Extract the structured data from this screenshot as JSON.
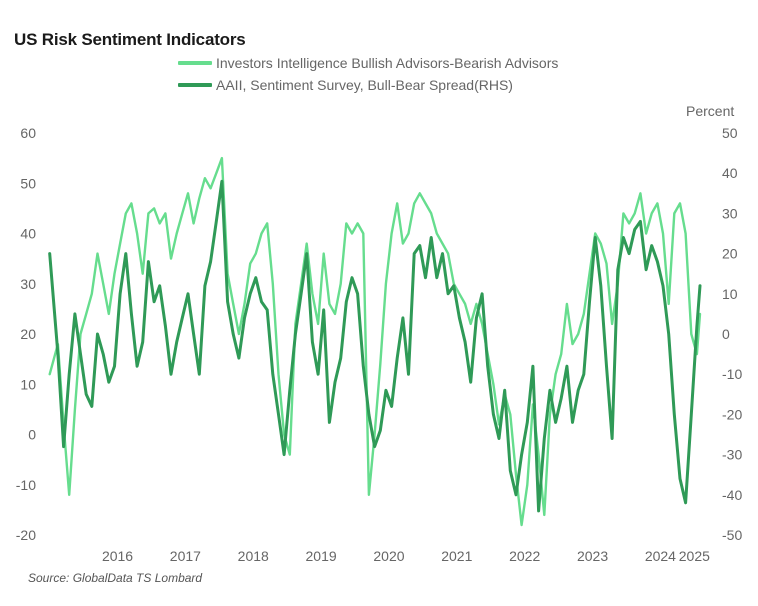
{
  "page": {
    "title": "US Risk Sentiment Indicators",
    "source": "Source: GlobalData TS Lombard",
    "rhs_unit": "Percent"
  },
  "colors": {
    "ii": "#66dd8e",
    "aaii": "#2f9a57"
  },
  "chart_data": {
    "type": "line",
    "title": "US Risk Sentiment Indicators",
    "x_range": [
      "2015-06",
      "2025-02"
    ],
    "x_tick_labels": [
      "2016",
      "2017",
      "2018",
      "2019",
      "2020",
      "2021",
      "2022",
      "2023",
      "2024",
      "2025"
    ],
    "left_axis": {
      "ylim": [
        -20,
        60
      ],
      "ticks": [
        "60",
        "50",
        "40",
        "30",
        "20",
        "10",
        "0",
        "-10",
        "-20"
      ]
    },
    "right_axis": {
      "label": "Percent",
      "ylim": [
        -50,
        50
      ],
      "ticks": [
        "50",
        "40",
        "30",
        "20",
        "10",
        "0",
        "-10",
        "-20",
        "-30",
        "-40",
        "-50"
      ]
    },
    "grid": false,
    "legend_position": "top",
    "series": [
      {
        "name": "Investors Intelligence Bullish Advisors-Bearish Advisors",
        "axis": "left",
        "color": "#66dd8e",
        "points": [
          [
            "2015-07-01",
            12
          ],
          [
            "2015-08-15",
            18
          ],
          [
            "2015-09-15",
            2
          ],
          [
            "2015-10-15",
            -12
          ],
          [
            "2015-11-15",
            5
          ],
          [
            "2015-12-15",
            20
          ],
          [
            "2016-01-15",
            24
          ],
          [
            "2016-02-15",
            28
          ],
          [
            "2016-03-15",
            36
          ],
          [
            "2016-04-15",
            30
          ],
          [
            "2016-05-15",
            24
          ],
          [
            "2016-06-15",
            32
          ],
          [
            "2016-07-15",
            38
          ],
          [
            "2016-08-15",
            44
          ],
          [
            "2016-09-15",
            46
          ],
          [
            "2016-10-15",
            40
          ],
          [
            "2016-11-15",
            32
          ],
          [
            "2016-12-15",
            44
          ],
          [
            "2017-01-15",
            45
          ],
          [
            "2017-02-15",
            42
          ],
          [
            "2017-03-15",
            44
          ],
          [
            "2017-04-15",
            35
          ],
          [
            "2017-05-15",
            40
          ],
          [
            "2017-06-15",
            44
          ],
          [
            "2017-07-15",
            48
          ],
          [
            "2017-08-15",
            42
          ],
          [
            "2017-09-15",
            47
          ],
          [
            "2017-10-15",
            51
          ],
          [
            "2017-11-15",
            49
          ],
          [
            "2017-12-15",
            52
          ],
          [
            "2018-01-15",
            55
          ],
          [
            "2018-02-15",
            32
          ],
          [
            "2018-03-15",
            26
          ],
          [
            "2018-04-15",
            20
          ],
          [
            "2018-05-15",
            26
          ],
          [
            "2018-06-15",
            34
          ],
          [
            "2018-07-15",
            36
          ],
          [
            "2018-08-15",
            40
          ],
          [
            "2018-09-15",
            42
          ],
          [
            "2018-10-15",
            30
          ],
          [
            "2018-11-15",
            12
          ],
          [
            "2018-12-15",
            0
          ],
          [
            "2019-01-15",
            -4
          ],
          [
            "2019-02-15",
            22
          ],
          [
            "2019-03-15",
            30
          ],
          [
            "2019-04-15",
            38
          ],
          [
            "2019-05-15",
            28
          ],
          [
            "2019-06-15",
            22
          ],
          [
            "2019-07-15",
            36
          ],
          [
            "2019-08-15",
            26
          ],
          [
            "2019-09-15",
            24
          ],
          [
            "2019-10-15",
            30
          ],
          [
            "2019-11-15",
            42
          ],
          [
            "2019-12-15",
            40
          ],
          [
            "2020-01-15",
            42
          ],
          [
            "2020-02-15",
            40
          ],
          [
            "2020-03-15",
            -12
          ],
          [
            "2020-04-15",
            0
          ],
          [
            "2020-05-15",
            14
          ],
          [
            "2020-06-15",
            30
          ],
          [
            "2020-07-15",
            40
          ],
          [
            "2020-08-15",
            46
          ],
          [
            "2020-09-15",
            38
          ],
          [
            "2020-10-15",
            40
          ],
          [
            "2020-11-15",
            46
          ],
          [
            "2020-12-15",
            48
          ],
          [
            "2021-01-15",
            46
          ],
          [
            "2021-02-15",
            44
          ],
          [
            "2021-03-15",
            40
          ],
          [
            "2021-04-15",
            38
          ],
          [
            "2021-05-15",
            36
          ],
          [
            "2021-06-15",
            30
          ],
          [
            "2021-07-15",
            28
          ],
          [
            "2021-08-15",
            26
          ],
          [
            "2021-09-15",
            22
          ],
          [
            "2021-10-15",
            26
          ],
          [
            "2021-11-15",
            22
          ],
          [
            "2021-12-15",
            16
          ],
          [
            "2022-01-15",
            10
          ],
          [
            "2022-02-15",
            2
          ],
          [
            "2022-03-15",
            8
          ],
          [
            "2022-04-15",
            4
          ],
          [
            "2022-05-15",
            -8
          ],
          [
            "2022-06-15",
            -18
          ],
          [
            "2022-07-15",
            -10
          ],
          [
            "2022-08-15",
            6
          ],
          [
            "2022-09-15",
            -4
          ],
          [
            "2022-10-15",
            -16
          ],
          [
            "2022-11-15",
            4
          ],
          [
            "2022-12-15",
            12
          ],
          [
            "2023-01-15",
            16
          ],
          [
            "2023-02-15",
            26
          ],
          [
            "2023-03-15",
            18
          ],
          [
            "2023-04-15",
            20
          ],
          [
            "2023-05-15",
            24
          ],
          [
            "2023-06-15",
            32
          ],
          [
            "2023-07-15",
            40
          ],
          [
            "2023-08-15",
            38
          ],
          [
            "2023-09-15",
            34
          ],
          [
            "2023-10-15",
            22
          ],
          [
            "2023-11-15",
            30
          ],
          [
            "2023-12-15",
            44
          ],
          [
            "2024-01-15",
            42
          ],
          [
            "2024-02-15",
            44
          ],
          [
            "2024-03-15",
            48
          ],
          [
            "2024-04-15",
            40
          ],
          [
            "2024-05-15",
            44
          ],
          [
            "2024-06-15",
            46
          ],
          [
            "2024-07-15",
            40
          ],
          [
            "2024-08-15",
            26
          ],
          [
            "2024-09-15",
            44
          ],
          [
            "2024-10-15",
            46
          ],
          [
            "2024-11-15",
            40
          ],
          [
            "2024-12-15",
            20
          ],
          [
            "2025-01-15",
            16
          ],
          [
            "2025-02-01",
            24
          ]
        ]
      },
      {
        "name": "AAII, Sentiment Survey, Bull-Bear Spread(RHS)",
        "axis": "right",
        "color": "#2f9a57",
        "points": [
          [
            "2015-07-01",
            20
          ],
          [
            "2015-08-15",
            -5
          ],
          [
            "2015-09-15",
            -28
          ],
          [
            "2015-10-15",
            -10
          ],
          [
            "2015-11-15",
            5
          ],
          [
            "2015-12-15",
            -5
          ],
          [
            "2016-01-15",
            -15
          ],
          [
            "2016-02-15",
            -18
          ],
          [
            "2016-03-15",
            0
          ],
          [
            "2016-04-15",
            -5
          ],
          [
            "2016-05-15",
            -12
          ],
          [
            "2016-06-15",
            -8
          ],
          [
            "2016-07-15",
            10
          ],
          [
            "2016-08-15",
            20
          ],
          [
            "2016-09-15",
            5
          ],
          [
            "2016-10-15",
            -8
          ],
          [
            "2016-11-15",
            -2
          ],
          [
            "2016-12-15",
            18
          ],
          [
            "2017-01-15",
            8
          ],
          [
            "2017-02-15",
            12
          ],
          [
            "2017-03-15",
            2
          ],
          [
            "2017-04-15",
            -10
          ],
          [
            "2017-05-15",
            -2
          ],
          [
            "2017-06-15",
            4
          ],
          [
            "2017-07-15",
            10
          ],
          [
            "2017-08-15",
            0
          ],
          [
            "2017-09-15",
            -10
          ],
          [
            "2017-10-15",
            12
          ],
          [
            "2017-11-15",
            18
          ],
          [
            "2017-12-15",
            28
          ],
          [
            "2018-01-15",
            38
          ],
          [
            "2018-02-15",
            8
          ],
          [
            "2018-03-15",
            0
          ],
          [
            "2018-04-15",
            -6
          ],
          [
            "2018-05-15",
            4
          ],
          [
            "2018-06-15",
            10
          ],
          [
            "2018-07-15",
            14
          ],
          [
            "2018-08-15",
            8
          ],
          [
            "2018-09-15",
            6
          ],
          [
            "2018-10-15",
            -10
          ],
          [
            "2018-11-15",
            -20
          ],
          [
            "2018-12-15",
            -30
          ],
          [
            "2019-01-15",
            -14
          ],
          [
            "2019-02-15",
            0
          ],
          [
            "2019-03-15",
            10
          ],
          [
            "2019-04-15",
            20
          ],
          [
            "2019-05-15",
            -2
          ],
          [
            "2019-06-15",
            -10
          ],
          [
            "2019-07-15",
            6
          ],
          [
            "2019-08-15",
            -22
          ],
          [
            "2019-09-15",
            -12
          ],
          [
            "2019-10-15",
            -6
          ],
          [
            "2019-11-15",
            8
          ],
          [
            "2019-12-15",
            14
          ],
          [
            "2020-01-15",
            10
          ],
          [
            "2020-02-15",
            -8
          ],
          [
            "2020-03-15",
            -20
          ],
          [
            "2020-04-15",
            -28
          ],
          [
            "2020-05-15",
            -24
          ],
          [
            "2020-06-15",
            -14
          ],
          [
            "2020-07-15",
            -18
          ],
          [
            "2020-08-15",
            -6
          ],
          [
            "2020-09-15",
            4
          ],
          [
            "2020-10-15",
            -10
          ],
          [
            "2020-11-15",
            20
          ],
          [
            "2020-12-15",
            22
          ],
          [
            "2021-01-15",
            14
          ],
          [
            "2021-02-15",
            24
          ],
          [
            "2021-03-15",
            14
          ],
          [
            "2021-04-15",
            20
          ],
          [
            "2021-05-15",
            10
          ],
          [
            "2021-06-15",
            12
          ],
          [
            "2021-07-15",
            4
          ],
          [
            "2021-08-15",
            -2
          ],
          [
            "2021-09-15",
            -12
          ],
          [
            "2021-10-15",
            4
          ],
          [
            "2021-11-15",
            10
          ],
          [
            "2021-12-15",
            -8
          ],
          [
            "2022-01-15",
            -20
          ],
          [
            "2022-02-15",
            -26
          ],
          [
            "2022-03-15",
            -14
          ],
          [
            "2022-04-15",
            -34
          ],
          [
            "2022-05-15",
            -40
          ],
          [
            "2022-06-15",
            -30
          ],
          [
            "2022-07-15",
            -22
          ],
          [
            "2022-08-15",
            -8
          ],
          [
            "2022-09-15",
            -44
          ],
          [
            "2022-10-15",
            -26
          ],
          [
            "2022-11-15",
            -14
          ],
          [
            "2022-12-15",
            -22
          ],
          [
            "2023-01-15",
            -16
          ],
          [
            "2023-02-15",
            -8
          ],
          [
            "2023-03-15",
            -22
          ],
          [
            "2023-04-15",
            -14
          ],
          [
            "2023-05-15",
            -10
          ],
          [
            "2023-06-15",
            8
          ],
          [
            "2023-07-15",
            24
          ],
          [
            "2023-08-15",
            12
          ],
          [
            "2023-09-15",
            -8
          ],
          [
            "2023-10-15",
            -26
          ],
          [
            "2023-11-15",
            16
          ],
          [
            "2023-12-15",
            24
          ],
          [
            "2024-01-15",
            20
          ],
          [
            "2024-02-15",
            26
          ],
          [
            "2024-03-15",
            28
          ],
          [
            "2024-04-15",
            16
          ],
          [
            "2024-05-15",
            22
          ],
          [
            "2024-06-15",
            18
          ],
          [
            "2024-07-15",
            12
          ],
          [
            "2024-08-15",
            0
          ],
          [
            "2024-09-15",
            -20
          ],
          [
            "2024-10-15",
            -36
          ],
          [
            "2024-11-15",
            -42
          ],
          [
            "2024-12-15",
            -20
          ],
          [
            "2025-01-15",
            2
          ],
          [
            "2025-02-01",
            12
          ]
        ]
      }
    ]
  }
}
